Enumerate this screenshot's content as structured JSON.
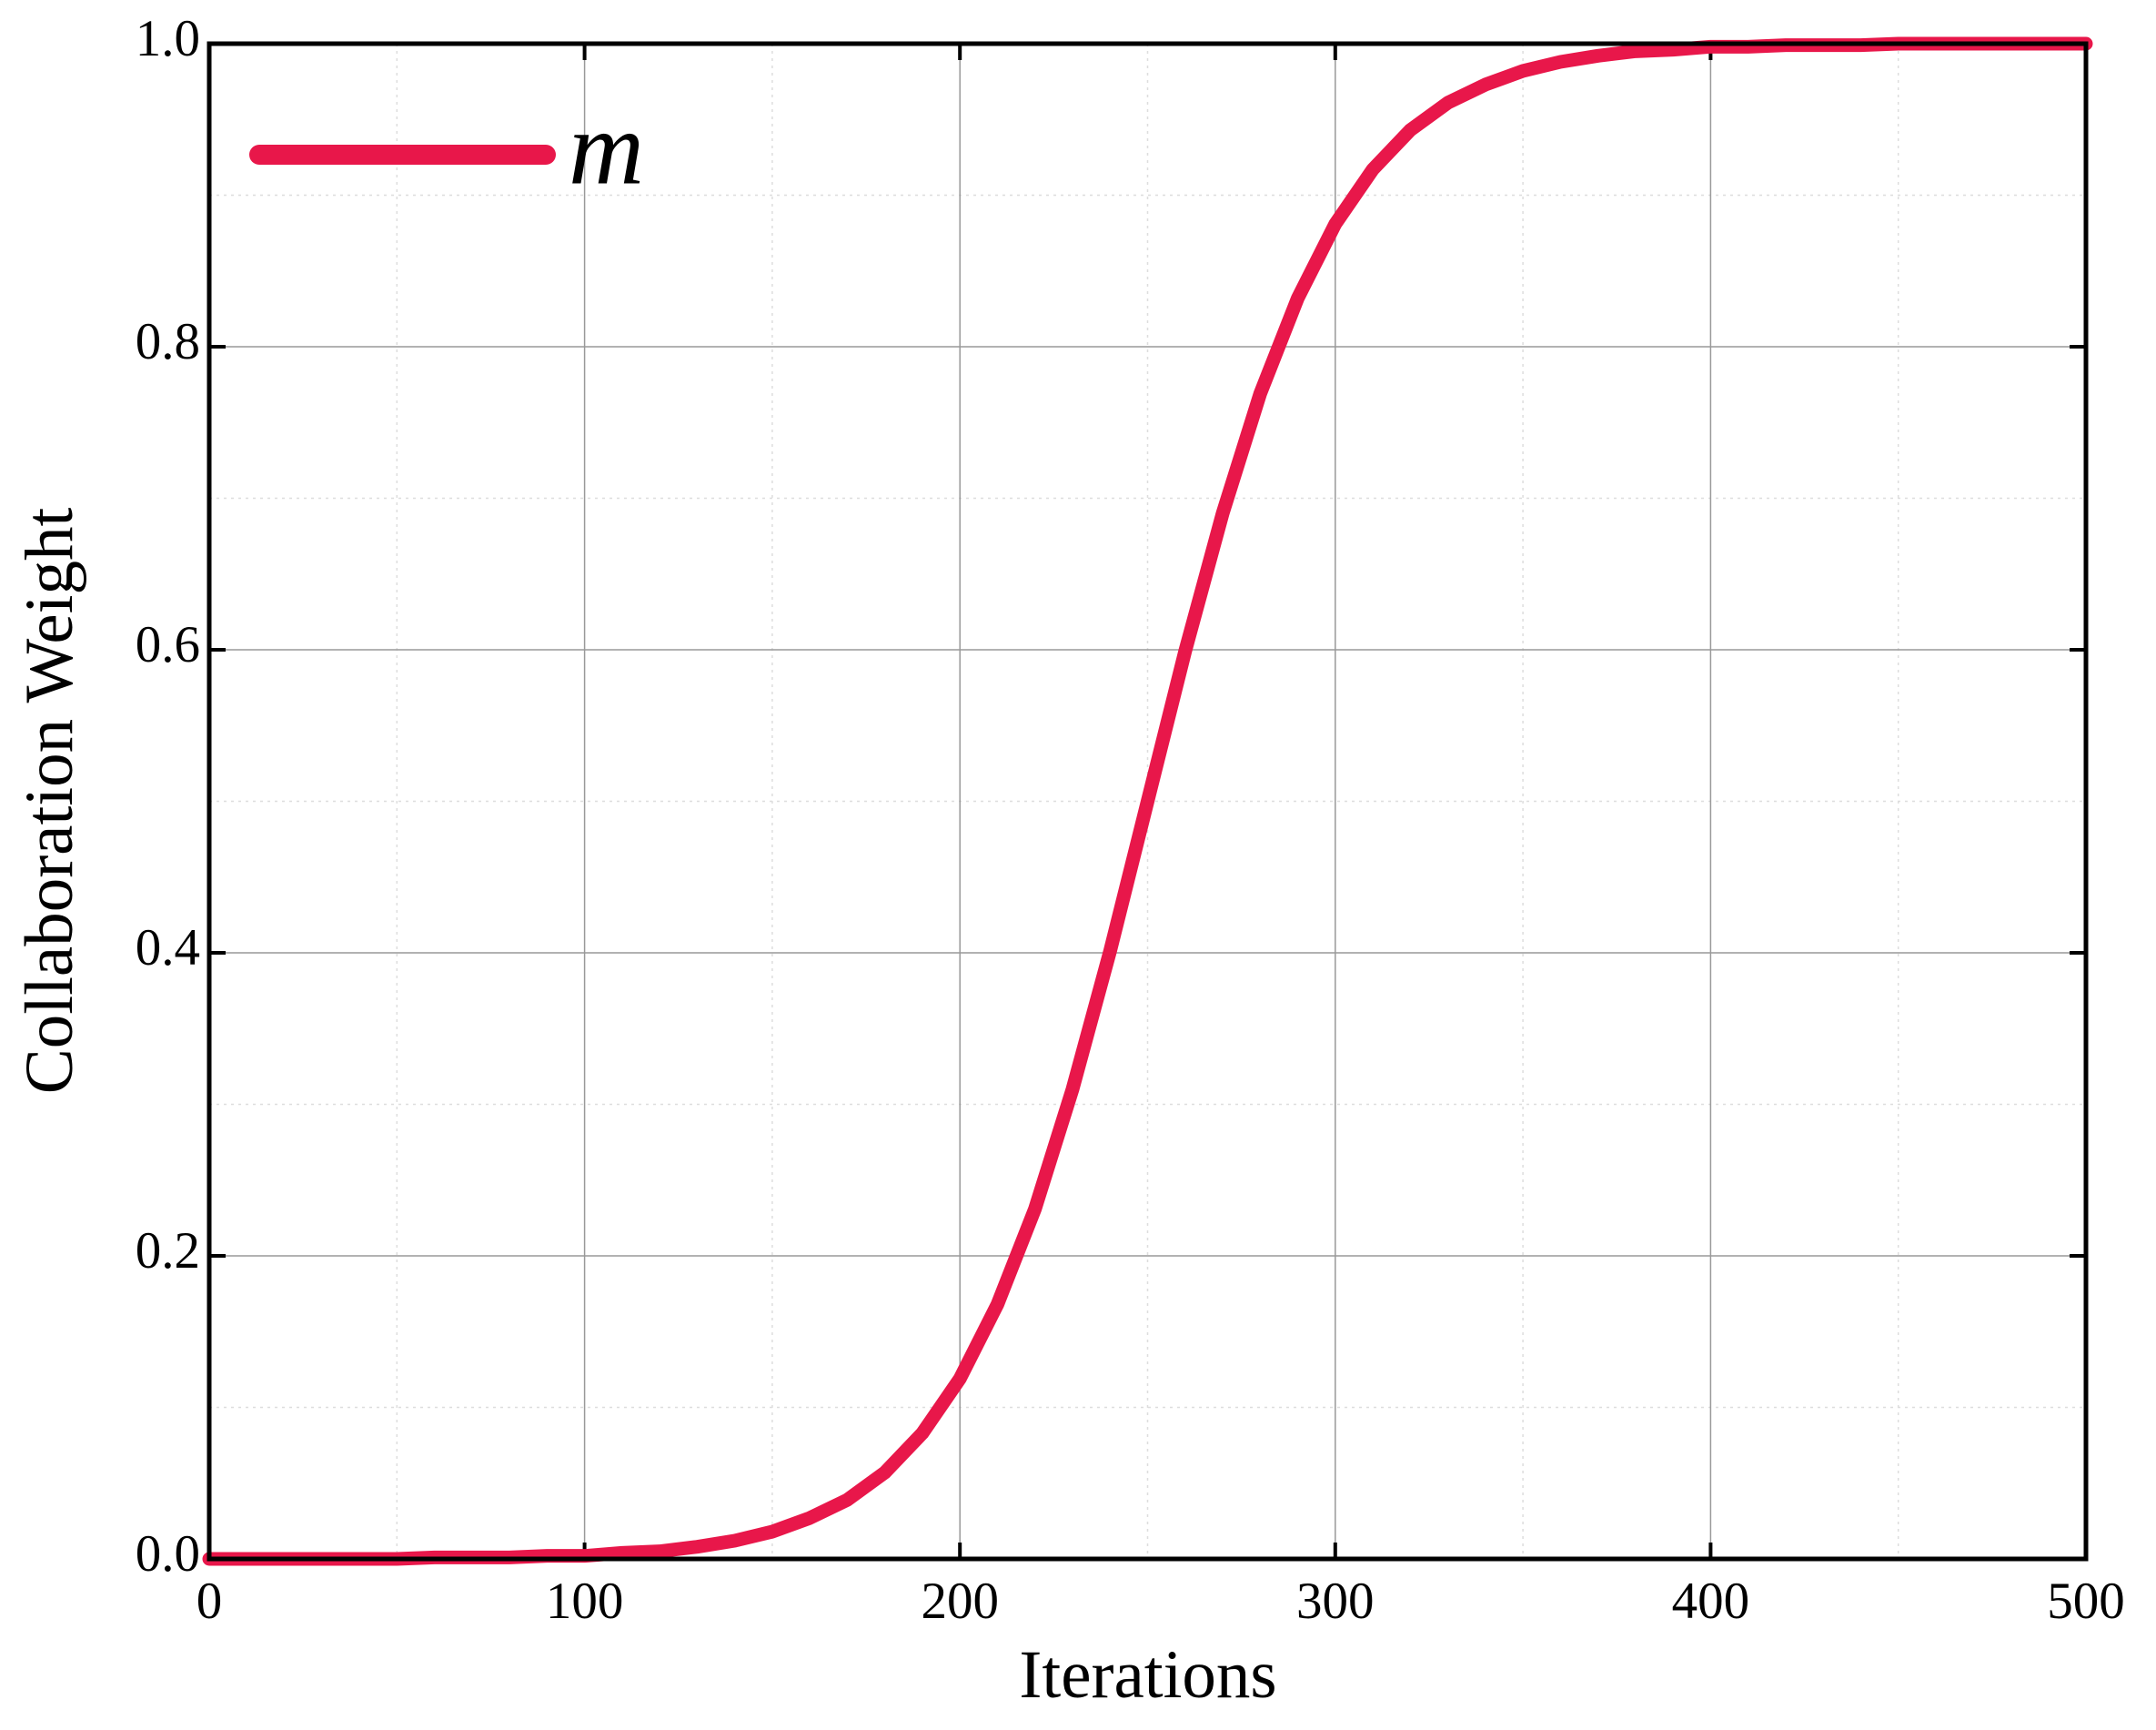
{
  "chart_data": {
    "type": "line",
    "xlabel": "Iterations",
    "ylabel": "Collaboration Weight",
    "x": [
      0,
      10,
      20,
      30,
      40,
      50,
      60,
      70,
      80,
      90,
      100,
      110,
      120,
      130,
      140,
      150,
      160,
      170,
      180,
      190,
      200,
      210,
      220,
      230,
      240,
      250,
      260,
      270,
      280,
      290,
      300,
      310,
      320,
      330,
      340,
      350,
      360,
      370,
      380,
      390,
      400,
      410,
      420,
      430,
      440,
      450,
      460,
      470,
      480,
      490,
      500
    ],
    "series": [
      {
        "name": "m",
        "color": "#e8174a",
        "values": [
          0.0,
          0.0,
          0.0,
          0.0,
          0.0,
          0.0,
          0.001,
          0.001,
          0.001,
          0.002,
          0.002,
          0.004,
          0.005,
          0.008,
          0.012,
          0.018,
          0.027,
          0.039,
          0.057,
          0.083,
          0.119,
          0.168,
          0.231,
          0.31,
          0.401,
          0.5,
          0.599,
          0.69,
          0.769,
          0.832,
          0.881,
          0.917,
          0.943,
          0.961,
          0.973,
          0.982,
          0.988,
          0.992,
          0.995,
          0.996,
          0.998,
          0.998,
          0.999,
          0.999,
          0.999,
          1.0,
          1.0,
          1.0,
          1.0,
          1.0,
          1.0
        ]
      }
    ],
    "xlim": [
      0,
      500
    ],
    "ylim": [
      0,
      1
    ],
    "xticks": [
      0,
      100,
      200,
      300,
      400,
      500
    ],
    "yticks": [
      {
        "value": 0,
        "label": "0.0"
      },
      0.2,
      0.4,
      0.6,
      0.8,
      {
        "value": 1,
        "label": "1.0"
      }
    ],
    "minor_xticks": [
      50,
      150,
      250,
      350,
      450
    ],
    "minor_yticks": [
      0.1,
      0.3,
      0.5,
      0.7,
      0.9
    ],
    "grid": true,
    "legend": "upper left"
  }
}
